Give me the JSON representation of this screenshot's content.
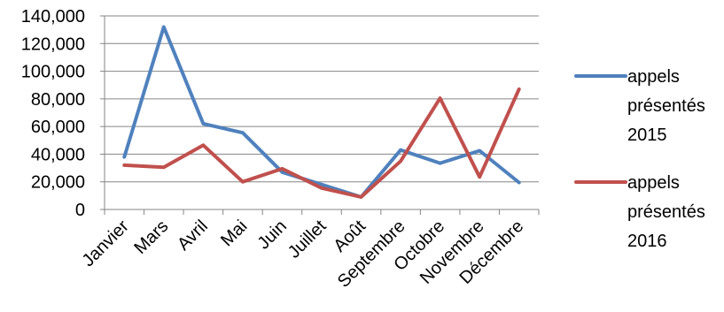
{
  "chart_data": {
    "type": "line",
    "categories": [
      "Janvier",
      "Mars",
      "Avril",
      "Mai",
      "Juin",
      "Juillet",
      "Août",
      "Septembre",
      "Octobre",
      "Novembre",
      "Décembre"
    ],
    "series": [
      {
        "name": "appels présentés 2015",
        "legend_lines": [
          "appels",
          "présentés",
          "2015"
        ],
        "color": "#4f81bd",
        "values": [
          38000,
          132000,
          62000,
          55500,
          27000,
          18000,
          9000,
          43000,
          33500,
          42500,
          19500
        ]
      },
      {
        "name": "appels présentés 2016",
        "legend_lines": [
          "appels",
          "présentés",
          "2016"
        ],
        "color": "#c0504d",
        "values": [
          32000,
          30500,
          46500,
          20000,
          29500,
          15500,
          9000,
          35000,
          80500,
          23500,
          87000
        ]
      }
    ],
    "title": "",
    "xlabel": "",
    "ylabel": "",
    "ylim": [
      0,
      140000
    ],
    "yticks": [
      "0",
      "20,000",
      "40,000",
      "60,000",
      "80,000",
      "100,000",
      "120,000",
      "140,000"
    ],
    "grid": true,
    "legend_position": "right"
  }
}
